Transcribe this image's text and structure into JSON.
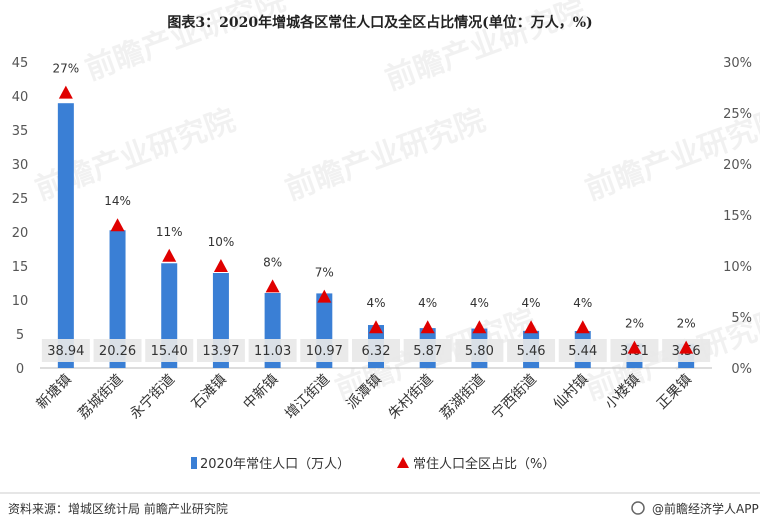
{
  "title": "图表3：2020年增城各区常住人口及全区占比情况(单位：万人，%)",
  "source": "资料来源：增城区统计局 前瞻产业研究院",
  "brand": "@前瞻经济学人APP",
  "watermark": "前瞻产业研究院",
  "colors": {
    "bar": "#3a7fd5",
    "marker": "#e00000",
    "label_bg": "#e8e8e8"
  },
  "chart_data": {
    "type": "bar",
    "categories": [
      "新塘镇",
      "荔城街道",
      "永宁街道",
      "石滩镇",
      "中新镇",
      "增江街道",
      "派潭镇",
      "朱村街道",
      "荔湖街道",
      "宁西街道",
      "仙村镇",
      "小楼镇",
      "正果镇"
    ],
    "value_labels": [
      "38.94",
      "20.26",
      "15.40",
      "13.97",
      "11.03",
      "10.97",
      "6.32",
      "5.87",
      "5.80",
      "5.46",
      "5.44",
      "3.61",
      "3.56"
    ],
    "series": [
      {
        "name": "2020年常住人口（万人）",
        "type": "bar",
        "axis": "left",
        "values": [
          38.94,
          20.26,
          15.4,
          13.97,
          11.03,
          10.97,
          6.32,
          5.87,
          5.8,
          5.46,
          5.44,
          3.61,
          3.56
        ]
      },
      {
        "name": "常住人口全区占比（%）",
        "type": "scatter",
        "axis": "right",
        "marker": "triangle",
        "values": [
          27,
          14,
          11,
          10,
          8,
          7,
          4,
          4,
          4,
          4,
          4,
          2,
          2
        ],
        "labels": [
          "27%",
          "14%",
          "11%",
          "10%",
          "8%",
          "7%",
          "4%",
          "4%",
          "4%",
          "4%",
          "4%",
          "2%",
          "2%"
        ]
      }
    ],
    "y_left": {
      "min": 0,
      "max": 45,
      "ticks": [
        "0",
        "5",
        "10",
        "15",
        "20",
        "25",
        "30",
        "35",
        "40",
        "45"
      ]
    },
    "y_right": {
      "min": 0,
      "max": 30,
      "ticks": [
        "0%",
        "5%",
        "10%",
        "15%",
        "20%",
        "25%",
        "30%"
      ]
    },
    "grid": false,
    "legend": "bottom"
  }
}
